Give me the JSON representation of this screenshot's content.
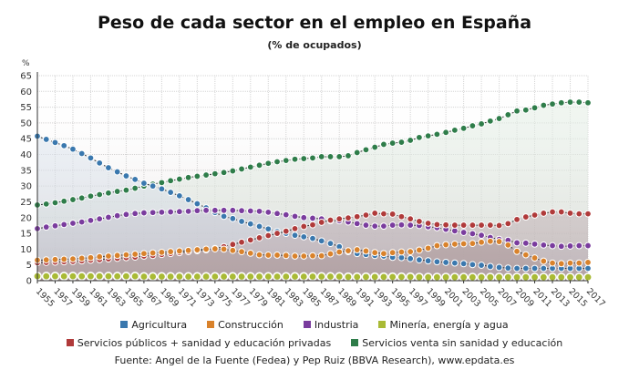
{
  "chart_data": {
    "type": "line",
    "title": "Peso de cada sector en el empleo en España",
    "subtitle": "(% de ocupados)",
    "ylabel": "%",
    "ylim": [
      0,
      65
    ],
    "yticks": [
      0,
      5,
      10,
      15,
      20,
      25,
      30,
      35,
      40,
      45,
      50,
      55,
      60,
      65
    ],
    "grid": true,
    "legend_position": "bottom",
    "source": "Fuente: Angel de la Fuente (Fedea) y Pep Ruiz (BBVA Research), www.epdata.es",
    "x": [
      1955,
      1956,
      1957,
      1958,
      1959,
      1960,
      1961,
      1962,
      1963,
      1964,
      1965,
      1966,
      1967,
      1968,
      1969,
      1970,
      1971,
      1972,
      1973,
      1974,
      1975,
      1976,
      1977,
      1978,
      1979,
      1980,
      1981,
      1982,
      1983,
      1984,
      1985,
      1986,
      1987,
      1988,
      1989,
      1990,
      1991,
      1992,
      1993,
      1994,
      1995,
      1996,
      1997,
      1998,
      1999,
      2000,
      2001,
      2002,
      2003,
      2004,
      2005,
      2006,
      2007,
      2008,
      2009,
      2010,
      2011,
      2012,
      2013,
      2014,
      2015,
      2016,
      2017
    ],
    "x_tick_labels": [
      "1955",
      "1957",
      "1959",
      "1961",
      "1963",
      "1965",
      "1967",
      "1969",
      "1971",
      "1973",
      "1975",
      "1977",
      "1979",
      "1981",
      "1983",
      "1985",
      "1987",
      "1989",
      "1991",
      "1993",
      "1995",
      "1997",
      "1999",
      "2001",
      "2003",
      "2005",
      "2007",
      "2009",
      "2011",
      "2013",
      "2015",
      "2017"
    ],
    "series": [
      {
        "name": "Servicios venta sin sanidad y educación",
        "color": "#2f7d4a",
        "fill": "#e3efe6",
        "values": [
          24.0,
          24.3,
          24.7,
          25.2,
          25.7,
          26.2,
          26.8,
          27.3,
          27.8,
          28.3,
          28.7,
          29.3,
          30.0,
          30.6,
          31.1,
          31.7,
          32.2,
          32.7,
          33.1,
          33.5,
          33.9,
          34.3,
          34.8,
          35.4,
          36.0,
          36.6,
          37.2,
          37.7,
          38.1,
          38.5,
          38.7,
          38.9,
          39.3,
          39.3,
          39.3,
          39.6,
          40.6,
          41.5,
          42.3,
          43.2,
          43.6,
          43.9,
          44.5,
          45.4,
          45.9,
          46.4,
          47.0,
          47.7,
          48.3,
          49.1,
          49.7,
          50.6,
          51.4,
          52.6,
          53.8,
          54.1,
          54.8,
          55.6,
          56.0,
          56.4,
          56.6,
          56.6,
          56.4
        ]
      },
      {
        "name": "Agricultura",
        "color": "#3a78ae",
        "fill": "#dfe8f1",
        "values": [
          45.8,
          44.8,
          43.8,
          42.8,
          41.7,
          40.3,
          38.9,
          37.3,
          35.8,
          34.5,
          33.2,
          32.1,
          30.9,
          30.0,
          29.1,
          28.0,
          26.9,
          25.7,
          24.4,
          23.1,
          21.6,
          20.4,
          19.7,
          18.8,
          18.0,
          17.2,
          16.4,
          15.6,
          15.0,
          14.4,
          13.9,
          13.4,
          12.6,
          11.8,
          10.8,
          9.2,
          8.6,
          8.3,
          8.0,
          7.8,
          7.4,
          7.3,
          7.0,
          6.6,
          6.3,
          6.0,
          5.8,
          5.6,
          5.4,
          5.1,
          4.9,
          4.5,
          4.2,
          4.0,
          3.9,
          3.9,
          3.9,
          3.9,
          3.9,
          3.9,
          3.9,
          3.9,
          3.9
        ]
      },
      {
        "name": "Industria",
        "color": "#7a3c9e",
        "fill": "#d2d6e0",
        "values": [
          16.5,
          17.0,
          17.4,
          17.8,
          18.2,
          18.6,
          19.1,
          19.6,
          20.1,
          20.6,
          21.0,
          21.3,
          21.5,
          21.6,
          21.7,
          21.8,
          21.9,
          22.0,
          22.2,
          22.3,
          22.3,
          22.3,
          22.3,
          22.2,
          22.1,
          22.0,
          21.7,
          21.3,
          20.9,
          20.4,
          20.0,
          19.8,
          19.6,
          19.0,
          19.0,
          18.6,
          18.1,
          17.6,
          17.3,
          17.3,
          17.6,
          17.7,
          17.6,
          17.5,
          17.1,
          16.8,
          16.3,
          15.8,
          15.3,
          14.9,
          14.4,
          13.7,
          13.1,
          12.8,
          12.0,
          11.9,
          11.6,
          11.3,
          11.1,
          10.9,
          11.0,
          11.1,
          11.1
        ]
      },
      {
        "name": "Servicios públicos + sanidad y educación privadas",
        "color": "#b03a3a",
        "fill": "#c9b9bd",
        "values": [
          5.7,
          5.8,
          5.9,
          6.0,
          6.1,
          6.3,
          6.5,
          6.7,
          6.9,
          7.1,
          7.3,
          7.5,
          7.8,
          8.0,
          8.3,
          8.6,
          8.9,
          9.2,
          9.5,
          9.8,
          10.2,
          10.8,
          11.5,
          12.2,
          12.9,
          13.6,
          14.3,
          15.0,
          15.7,
          16.5,
          17.2,
          17.7,
          18.5,
          19.2,
          19.6,
          19.9,
          20.3,
          20.8,
          21.4,
          21.2,
          21.1,
          20.3,
          19.6,
          18.8,
          18.2,
          17.8,
          17.7,
          17.6,
          17.6,
          17.6,
          17.6,
          17.6,
          17.5,
          18.1,
          19.4,
          20.2,
          20.8,
          21.4,
          21.8,
          21.8,
          21.4,
          21.2,
          21.2
        ]
      },
      {
        "name": "Construcción",
        "color": "#d9822b",
        "fill": "#b7a3a3",
        "values": [
          6.5,
          6.6,
          6.7,
          6.8,
          6.9,
          7.1,
          7.3,
          7.6,
          7.8,
          8.0,
          8.2,
          8.4,
          8.6,
          8.8,
          9.0,
          9.2,
          9.4,
          9.6,
          9.8,
          10.0,
          10.1,
          10.0,
          9.6,
          9.2,
          8.7,
          8.2,
          8.1,
          8.1,
          8.0,
          7.8,
          7.8,
          7.9,
          7.9,
          8.5,
          9.1,
          9.5,
          9.8,
          9.4,
          8.9,
          8.6,
          8.9,
          9.1,
          9.2,
          9.7,
          10.3,
          11.1,
          11.4,
          11.6,
          11.7,
          11.8,
          12.2,
          12.5,
          12.4,
          11.3,
          9.3,
          8.2,
          7.2,
          6.2,
          5.6,
          5.4,
          5.6,
          5.6,
          5.8
        ]
      },
      {
        "name": "Minería, energía y agua",
        "color": "#a9ba35",
        "fill": "#9c8a86",
        "values": [
          1.4,
          1.4,
          1.4,
          1.4,
          1.4,
          1.4,
          1.4,
          1.4,
          1.4,
          1.4,
          1.4,
          1.4,
          1.3,
          1.3,
          1.3,
          1.3,
          1.3,
          1.3,
          1.3,
          1.3,
          1.3,
          1.3,
          1.3,
          1.3,
          1.3,
          1.3,
          1.3,
          1.3,
          1.3,
          1.3,
          1.3,
          1.3,
          1.3,
          1.3,
          1.3,
          1.2,
          1.2,
          1.2,
          1.2,
          1.2,
          1.2,
          1.2,
          1.2,
          1.1,
          1.1,
          1.1,
          1.1,
          1.1,
          1.1,
          1.1,
          1.1,
          1.1,
          1.1,
          1.1,
          1.1,
          1.1,
          1.1,
          1.1,
          1.1,
          1.1,
          1.1,
          1.1,
          1.1
        ]
      }
    ],
    "legend": [
      {
        "label": "Agricultura",
        "color": "#3a78ae"
      },
      {
        "label": "Construcción",
        "color": "#d9822b"
      },
      {
        "label": "Industria",
        "color": "#7a3c9e"
      },
      {
        "label": "Minería, energía y agua",
        "color": "#a9ba35"
      },
      {
        "label": "Servicios públicos + sanidad y educación privadas",
        "color": "#b03a3a"
      },
      {
        "label": "Servicios venta sin sanidad y educación",
        "color": "#2f7d4a"
      }
    ]
  }
}
